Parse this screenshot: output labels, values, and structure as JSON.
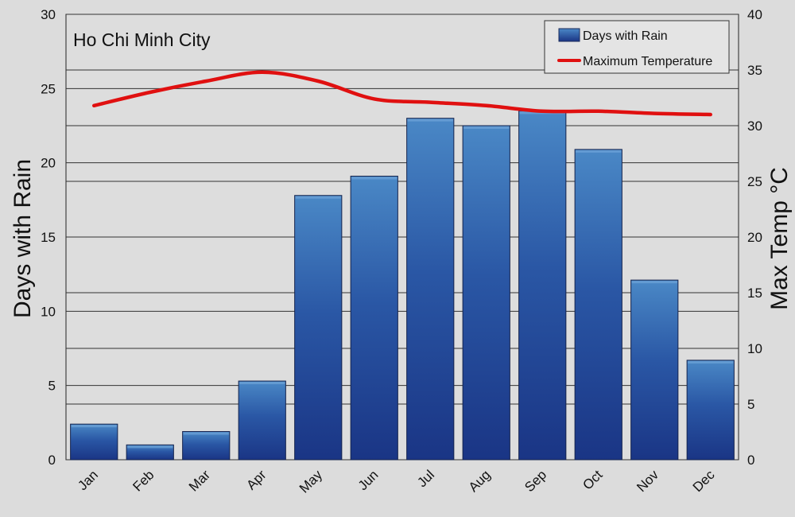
{
  "chart_data": {
    "type": "bar",
    "title": "Ho Chi Minh City",
    "categories": [
      "Jan",
      "Feb",
      "Mar",
      "Apr",
      "May",
      "Jun",
      "Jul",
      "Aug",
      "Sep",
      "Oct",
      "Nov",
      "Dec"
    ],
    "series": [
      {
        "name": "Days with Rain",
        "type": "bar",
        "axis": "left",
        "color": "#2e5ea8",
        "values": [
          2.4,
          1.0,
          1.9,
          5.3,
          17.8,
          19.1,
          23.0,
          22.5,
          23.5,
          20.9,
          12.1,
          6.7
        ]
      },
      {
        "name": "Maximum Temperature",
        "type": "line",
        "axis": "right",
        "color": "#e01010",
        "values": [
          31.8,
          33.0,
          34.0,
          34.8,
          34.0,
          32.4,
          32.1,
          31.8,
          31.3,
          31.3,
          31.1,
          31.0
        ]
      }
    ],
    "ylabel": "Days with Rain",
    "ylabel_right": "Max Temp °C",
    "ylim": [
      0,
      30
    ],
    "ylim_right": [
      0,
      40
    ],
    "yticks": [
      "0",
      "5",
      "10",
      "15",
      "20",
      "25",
      "30"
    ],
    "yticks_right": [
      "0",
      "5",
      "10",
      "15",
      "20",
      "25",
      "30",
      "35",
      "40"
    ],
    "grid": true,
    "legend": "top-right"
  }
}
